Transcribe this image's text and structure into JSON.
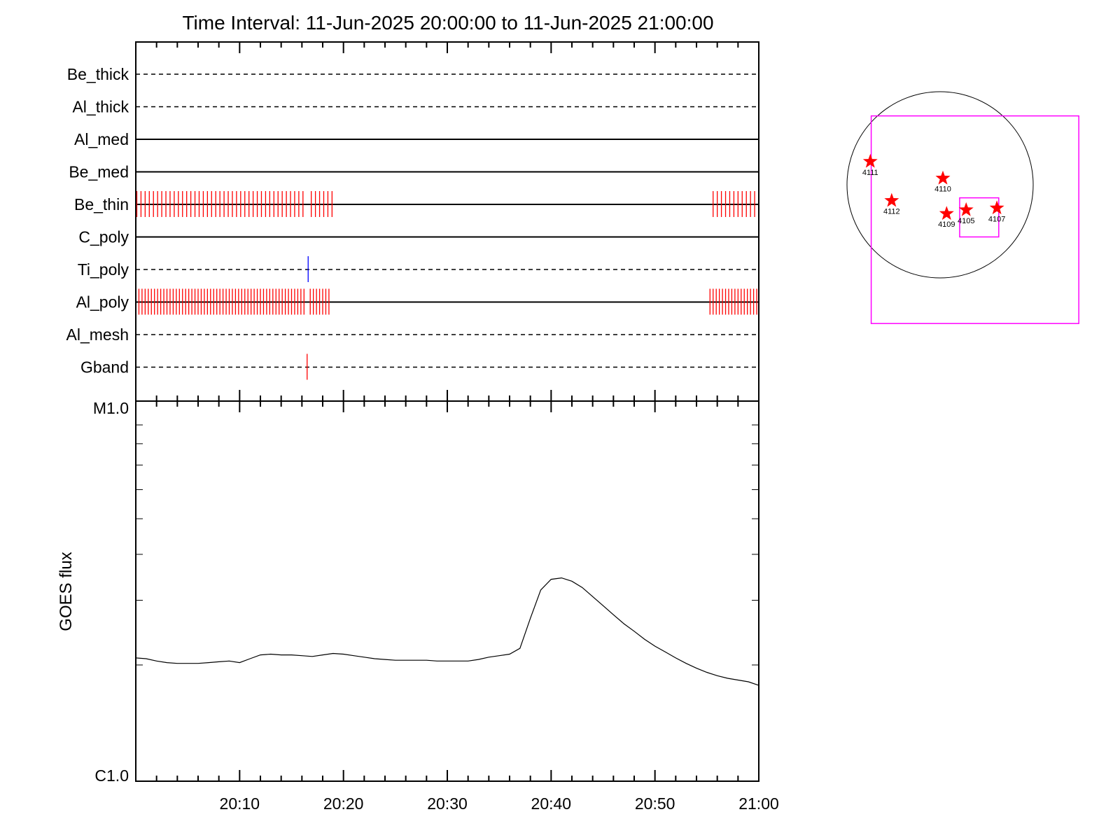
{
  "title": "Time Interval: 11-Jun-2025 20:00:00 to 11-Jun-2025 21:00:00",
  "colors": {
    "flag_red": "#ff0000",
    "flag_blue": "#0000ff",
    "box_magenta": "#ff00ff",
    "star_red": "#ff0000"
  },
  "chart_data": [
    {
      "type": "timeline",
      "title": "Time Interval: 11-Jun-2025 20:00:00 to 11-Jun-2025 21:00:00",
      "x_range": [
        "20:00",
        "21:00"
      ],
      "filters": [
        {
          "name": "Be_thick",
          "style": "dashed",
          "events": []
        },
        {
          "name": "Al_thick",
          "style": "dashed",
          "events": []
        },
        {
          "name": "Al_med",
          "style": "solid",
          "events": []
        },
        {
          "name": "Be_med",
          "style": "solid",
          "events": []
        },
        {
          "name": "Be_thin",
          "style": "solid",
          "color": "#ff0000",
          "events": [
            0.1,
            0.5,
            0.9,
            1.3,
            1.7,
            2.1,
            2.5,
            2.9,
            3.3,
            3.7,
            4.1,
            4.5,
            4.9,
            5.3,
            5.7,
            6.1,
            6.5,
            6.9,
            7.3,
            7.7,
            8.1,
            8.5,
            8.9,
            9.3,
            9.7,
            10.1,
            10.5,
            10.9,
            11.3,
            11.7,
            12.1,
            12.5,
            12.9,
            13.3,
            13.7,
            14.1,
            14.5,
            14.9,
            15.3,
            15.7,
            16.1,
            16.9,
            17.3,
            17.7,
            18.1,
            18.5,
            18.9,
            55.6,
            56.0,
            56.4,
            56.8,
            57.2,
            57.6,
            58.0,
            58.4,
            58.8,
            59.2,
            59.6
          ]
        },
        {
          "name": "C_poly",
          "style": "solid",
          "events": []
        },
        {
          "name": "Ti_poly",
          "style": "dashed",
          "color": "#0000ff",
          "events": [
            16.6
          ]
        },
        {
          "name": "Al_poly",
          "style": "solid",
          "color": "#ff0000",
          "events": [
            0.0,
            0.3,
            0.6,
            0.9,
            1.2,
            1.5,
            1.8,
            2.1,
            2.4,
            2.7,
            3.0,
            3.3,
            3.6,
            3.9,
            4.2,
            4.5,
            4.8,
            5.1,
            5.4,
            5.7,
            6.0,
            6.3,
            6.6,
            6.9,
            7.2,
            7.5,
            7.8,
            8.1,
            8.4,
            8.7,
            9.0,
            9.3,
            9.6,
            9.9,
            10.2,
            10.5,
            10.8,
            11.1,
            11.4,
            11.7,
            12.0,
            12.3,
            12.6,
            12.9,
            13.2,
            13.5,
            13.8,
            14.1,
            14.4,
            14.7,
            15.0,
            15.3,
            15.6,
            15.9,
            16.2,
            16.8,
            17.1,
            17.4,
            17.7,
            18.0,
            18.3,
            18.6,
            55.3,
            55.6,
            55.9,
            56.2,
            56.5,
            56.8,
            57.1,
            57.4,
            57.7,
            58.0,
            58.3,
            58.6,
            58.9,
            59.2,
            59.5,
            59.8
          ]
        },
        {
          "name": "Al_mesh",
          "style": "dashed",
          "events": []
        },
        {
          "name": "Gband",
          "style": "dashed",
          "color": "#ff0000",
          "events": [
            16.5
          ]
        }
      ]
    },
    {
      "type": "line",
      "ylabel": "GOES flux",
      "yscale": "log",
      "ylim": [
        1e-06,
        1e-05
      ],
      "y_tick_labels": [
        "C1.0",
        "M1.0"
      ],
      "x_tick_labels": [
        "20:10",
        "20:20",
        "20:30",
        "20:40",
        "20:50",
        "21:00"
      ],
      "x_minutes": [
        0,
        1,
        2,
        3,
        4,
        5,
        6,
        7,
        8,
        9,
        10,
        11,
        12,
        13,
        14,
        15,
        16,
        17,
        18,
        19,
        20,
        21,
        22,
        23,
        24,
        25,
        26,
        27,
        28,
        29,
        30,
        31,
        32,
        33,
        34,
        35,
        36,
        37,
        38,
        39,
        40,
        41,
        42,
        43,
        44,
        45,
        46,
        47,
        48,
        49,
        50,
        51,
        52,
        53,
        54,
        55,
        56,
        57,
        58,
        59,
        60
      ],
      "y": [
        2.09e-06,
        2.08e-06,
        2.05e-06,
        2.03e-06,
        2.02e-06,
        2.02e-06,
        2.02e-06,
        2.03e-06,
        2.04e-06,
        2.05e-06,
        2.03e-06,
        2.08e-06,
        2.13e-06,
        2.14e-06,
        2.13e-06,
        2.13e-06,
        2.12e-06,
        2.11e-06,
        2.13e-06,
        2.15e-06,
        2.14e-06,
        2.12e-06,
        2.1e-06,
        2.08e-06,
        2.07e-06,
        2.06e-06,
        2.06e-06,
        2.06e-06,
        2.06e-06,
        2.05e-06,
        2.05e-06,
        2.05e-06,
        2.05e-06,
        2.07e-06,
        2.1e-06,
        2.12e-06,
        2.14e-06,
        2.22e-06,
        2.68e-06,
        3.2e-06,
        3.42e-06,
        3.45e-06,
        3.38e-06,
        3.25e-06,
        3.07e-06,
        2.9e-06,
        2.74e-06,
        2.59e-06,
        2.47e-06,
        2.35e-06,
        2.25e-06,
        2.17e-06,
        2.09e-06,
        2.02e-06,
        1.96e-06,
        1.91e-06,
        1.87e-06,
        1.84e-06,
        1.82e-06,
        1.8e-06,
        1.76e-06
      ]
    },
    {
      "type": "scatter",
      "title": "",
      "points": [
        {
          "label": "4111",
          "x": -0.75,
          "y": 0.25
        },
        {
          "label": "4110",
          "x": 0.03,
          "y": 0.07
        },
        {
          "label": "4112",
          "x": -0.52,
          "y": -0.17
        },
        {
          "label": "4109",
          "x": 0.07,
          "y": -0.31
        },
        {
          "label": "4105",
          "x": 0.28,
          "y": -0.27
        },
        {
          "label": "4107",
          "x": 0.61,
          "y": -0.25
        }
      ],
      "disk_radius": 1.0,
      "boxes": [
        {
          "x": [
            -0.74,
            1.49
          ],
          "y": [
            -1.49,
            0.74
          ]
        },
        {
          "x": [
            0.21,
            0.63
          ],
          "y": [
            -0.56,
            -0.14
          ]
        }
      ]
    }
  ]
}
